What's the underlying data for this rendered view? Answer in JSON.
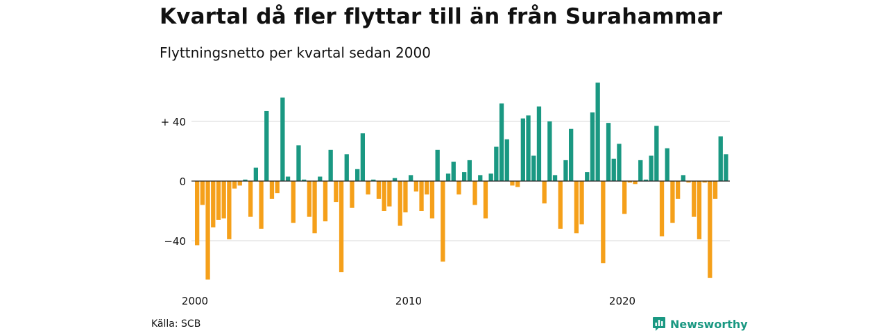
{
  "header": {
    "title": "Kvartal då fler flyttar till än från Surahammar",
    "subtitle": "Flyttningsnetto per kvartal sedan 2000"
  },
  "footer": {
    "source": "Källa: SCB",
    "brand": "Newsworthy",
    "brand_icon": "bar-chart-bubble-icon"
  },
  "colors": {
    "positive": "#1a9882",
    "negative": "#f5a01a",
    "grid": "#d9d9d9",
    "axis": "#222222",
    "text": "#111111"
  },
  "chart_data": {
    "type": "bar",
    "x_start": "2000Q1",
    "x_ticks": [
      {
        "label": "2000",
        "quarter_index": 0
      },
      {
        "label": "2010",
        "quarter_index": 40
      },
      {
        "label": "2020",
        "quarter_index": 80
      }
    ],
    "y_ticks": [
      {
        "label": "+ 40",
        "value": 40
      },
      {
        "label": "0",
        "value": 0
      },
      {
        "label": "−40",
        "value": -40
      }
    ],
    "ylim": [
      -70,
      70
    ],
    "grid": true,
    "values": [
      -43,
      -16,
      -66,
      -31,
      -26,
      -25,
      -39,
      -5,
      -3,
      1,
      -24,
      9,
      -32,
      47,
      -12,
      -8,
      56,
      3,
      -28,
      24,
      1,
      -24,
      -35,
      3,
      -27,
      21,
      -14,
      -61,
      18,
      -18,
      8,
      32,
      -9,
      1,
      -12,
      -20,
      -17,
      2,
      -30,
      -21,
      4,
      -7,
      -20,
      -9,
      -25,
      21,
      -54,
      5,
      13,
      -9,
      6,
      14,
      -16,
      4,
      -25,
      5,
      23,
      52,
      28,
      -3,
      -4,
      42,
      44,
      17,
      50,
      -15,
      40,
      4,
      -32,
      14,
      35,
      -35,
      -29,
      6,
      46,
      66,
      -55,
      39,
      15,
      25,
      -22,
      -1,
      -2,
      14,
      1,
      17,
      37,
      -37,
      22,
      -28,
      -12,
      4,
      -1,
      -24,
      -39,
      -1,
      -65,
      -12,
      30,
      18
    ]
  }
}
